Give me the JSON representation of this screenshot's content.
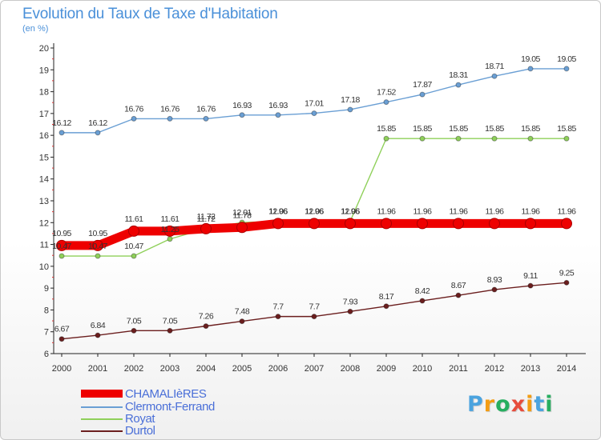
{
  "title": "Evolution du Taux de Taxe d'Habitation",
  "unit_label": "(en %)",
  "logo": {
    "text": "Proxiti",
    "letters": [
      "P",
      "r",
      "o",
      "x",
      "i",
      "t",
      "i"
    ],
    "colors": [
      "#4aa3df",
      "#f39c12",
      "#27ae60",
      "#e74c3c",
      "#f39c12",
      "#4aa3df",
      "#27ae60"
    ]
  },
  "chart_data": {
    "type": "line",
    "x": [
      2000,
      2001,
      2002,
      2003,
      2004,
      2005,
      2006,
      2007,
      2008,
      2009,
      2010,
      2011,
      2012,
      2013,
      2014
    ],
    "ylim": [
      6,
      20
    ],
    "yticks": [
      6,
      7,
      8,
      9,
      10,
      11,
      12,
      13,
      14,
      15,
      16,
      17,
      18,
      19,
      20
    ],
    "grid": false,
    "legend_position": "bottom-left",
    "series": [
      {
        "name": "CHAMALIèRES",
        "color": "#ee0000",
        "values": [
          10.95,
          10.95,
          11.61,
          11.61,
          11.72,
          11.78,
          11.96,
          11.96,
          11.96,
          11.96,
          11.96,
          11.96,
          11.96,
          11.96,
          11.96
        ],
        "labels": [
          "10.95",
          "10.95",
          "11.61",
          "11.61",
          "11.72",
          "11.78",
          "11.96",
          "11.96",
          "11.96",
          "11.96",
          "11.96",
          "11.96",
          "11.96",
          "11.96",
          "11.96"
        ]
      },
      {
        "name": "Clermont-Ferrand",
        "color": "#6a9fd4",
        "values": [
          16.12,
          16.12,
          16.76,
          16.76,
          16.76,
          16.93,
          16.93,
          17.01,
          17.18,
          17.52,
          17.87,
          18.31,
          18.71,
          19.05,
          19.05
        ],
        "labels": [
          "16.12",
          "16.12",
          "16.76",
          "16.76",
          "16.76",
          "16.93",
          "16.93",
          "17.01",
          "17.18",
          "17.52",
          "17.87",
          "18.31",
          "18.71",
          "19.05",
          "19.05"
        ]
      },
      {
        "name": "Royat",
        "color": "#8fd05a",
        "values": [
          10.47,
          10.47,
          10.47,
          11.25,
          11.72,
          12.01,
          12.06,
          12.06,
          12.06,
          15.85,
          15.85,
          15.85,
          15.85,
          15.85,
          15.85
        ],
        "labels": [
          "10.47",
          "10.47",
          "10.47",
          "11.25",
          "11.72",
          "12.01",
          "12.06",
          "12.06",
          "12.06",
          "15.85",
          "15.85",
          "15.85",
          "15.85",
          "15.85",
          "15.85"
        ]
      },
      {
        "name": "Durtol",
        "color": "#6b1e1e",
        "values": [
          6.67,
          6.84,
          7.05,
          7.05,
          7.26,
          7.48,
          7.7,
          7.7,
          7.93,
          8.17,
          8.42,
          8.67,
          8.93,
          9.11,
          9.25
        ],
        "labels": [
          "6.67",
          "6.84",
          "7.05",
          "7.05",
          "7.26",
          "7.48",
          "7.7",
          "7.7",
          "7.93",
          "8.17",
          "8.42",
          "8.67",
          "8.93",
          "9.11",
          "9.25"
        ]
      }
    ]
  }
}
